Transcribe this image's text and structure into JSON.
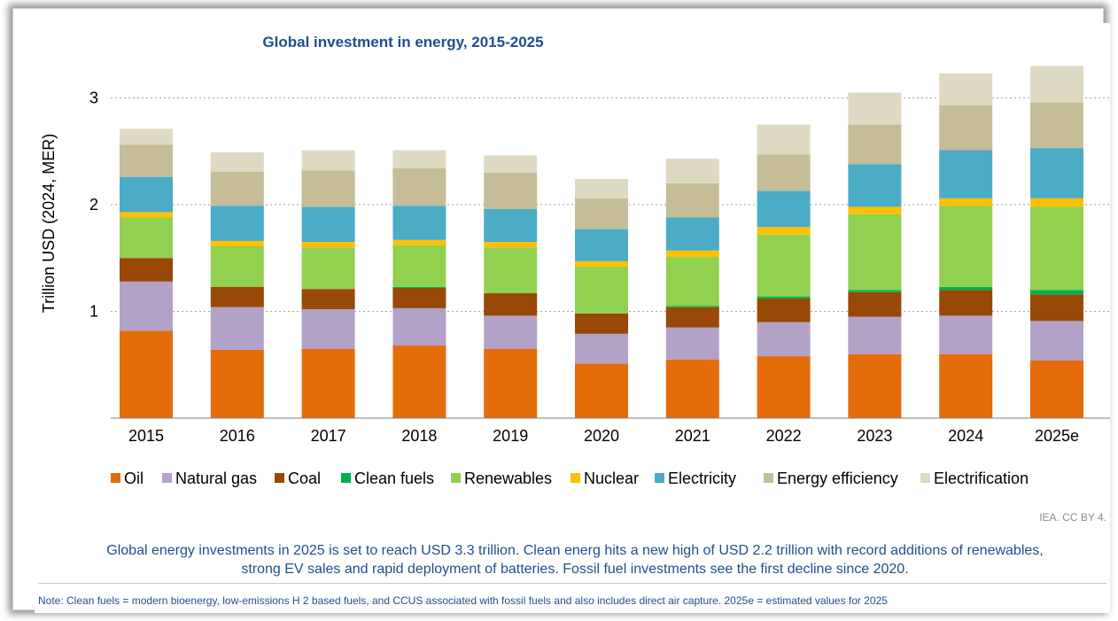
{
  "chart_data": {
    "type": "bar",
    "stacked": true,
    "title": "Global investment in energy, 2015-2025",
    "xlabel": "",
    "ylabel": "Trillion USD (2024, MER)",
    "ylim": [
      0,
      3.3
    ],
    "yticks": [
      1,
      2,
      3
    ],
    "grid": "horizontal-dotted",
    "legend_position": "bottom",
    "categories": [
      "2015",
      "2016",
      "2017",
      "2018",
      "2019",
      "2020",
      "2021",
      "2022",
      "2023",
      "2024",
      "2025e"
    ],
    "series": [
      {
        "name": "Oil",
        "color": "#e46c0a",
        "values": [
          0.82,
          0.64,
          0.65,
          0.68,
          0.65,
          0.51,
          0.55,
          0.58,
          0.6,
          0.6,
          0.54
        ]
      },
      {
        "name": "Natural gas",
        "color": "#b3a2c7",
        "values": [
          0.46,
          0.4,
          0.37,
          0.35,
          0.31,
          0.28,
          0.3,
          0.32,
          0.35,
          0.36,
          0.37
        ]
      },
      {
        "name": "Coal",
        "color": "#984807",
        "values": [
          0.22,
          0.19,
          0.19,
          0.19,
          0.21,
          0.19,
          0.19,
          0.22,
          0.23,
          0.24,
          0.25
        ]
      },
      {
        "name": "Clean fuels",
        "color": "#00b050",
        "values": [
          0.0,
          0.0,
          0.0,
          0.01,
          0.0,
          0.0,
          0.01,
          0.02,
          0.02,
          0.03,
          0.04
        ]
      },
      {
        "name": "Renewables",
        "color": "#92d050",
        "values": [
          0.38,
          0.38,
          0.39,
          0.39,
          0.43,
          0.44,
          0.46,
          0.58,
          0.71,
          0.76,
          0.78
        ]
      },
      {
        "name": "Nuclear",
        "color": "#ffc000",
        "values": [
          0.05,
          0.05,
          0.05,
          0.05,
          0.05,
          0.05,
          0.06,
          0.07,
          0.07,
          0.07,
          0.08
        ]
      },
      {
        "name": "Electricity",
        "color": "#4bacc6",
        "values": [
          0.33,
          0.33,
          0.33,
          0.32,
          0.31,
          0.3,
          0.31,
          0.34,
          0.4,
          0.45,
          0.47
        ]
      },
      {
        "name": "Energy efficiency",
        "color": "#c4bd97",
        "values": [
          0.3,
          0.32,
          0.34,
          0.35,
          0.34,
          0.29,
          0.32,
          0.34,
          0.37,
          0.42,
          0.43
        ]
      },
      {
        "name": "Electrification",
        "color": "#ddd9c3",
        "values": [
          0.15,
          0.18,
          0.19,
          0.17,
          0.16,
          0.18,
          0.23,
          0.28,
          0.3,
          0.3,
          0.34
        ]
      }
    ]
  },
  "source": "IEA. CC BY 4.",
  "summary_lines": [
    "Global energy investments in 2025 is set to reach USD 3.3 trillion. Clean energ hits a new high of USD 2.2 trillion with record additions of renewables,",
    "strong EV sales and rapid deployment of batteries. Fossil fuel investments see the first decline since 2020."
  ],
  "footnote": "Note: Clean fuels = modern bioenergy, low-emissions H 2 based fuels, and CCUS associated with fossil fuels and also includes direct air capture. 2025e = estimated values for 2025",
  "colors": {
    "title": "#1f4e8c",
    "text": "#1f4e8c",
    "axis_text": "#000000",
    "gridline": "#a6a6a6"
  }
}
